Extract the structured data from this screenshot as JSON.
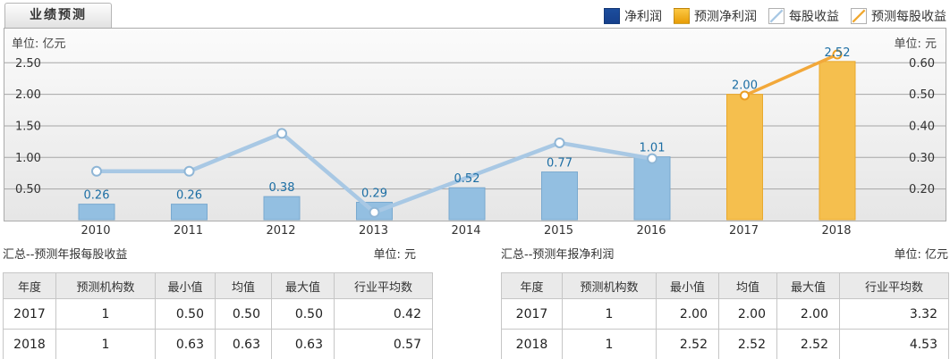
{
  "tab": {
    "label": "业绩预测"
  },
  "legend": {
    "items": [
      {
        "name": "net-profit",
        "label": "净利润",
        "swatch": "solid",
        "color": "#1c4d9d",
        "color2": "#16408c"
      },
      {
        "name": "forecast-net-profit",
        "label": "预测净利润",
        "swatch": "solid",
        "color": "#fcc844",
        "color2": "#e89d06"
      },
      {
        "name": "eps",
        "label": "每股收益",
        "swatch": "diagonal",
        "color": "#a8c8e4"
      },
      {
        "name": "forecast-eps",
        "label": "预测每股收益",
        "swatch": "diagonal",
        "color": "#f0a830"
      }
    ]
  },
  "chart_data": {
    "type": "combo-bar-line",
    "categories": [
      "2010",
      "2011",
      "2012",
      "2013",
      "2014",
      "2015",
      "2016",
      "2017",
      "2018"
    ],
    "left_axis": {
      "unit": "单位: 亿元",
      "ticks": [
        "2.50",
        "2.00",
        "1.50",
        "1.00",
        "0.50"
      ],
      "range": [
        0,
        3.06
      ]
    },
    "right_axis": {
      "unit": "单位: 元",
      "ticks": [
        "0.60",
        "0.50",
        "0.40",
        "0.30",
        "0.20"
      ],
      "range": [
        0.1,
        0.71
      ]
    },
    "grid": "horizontal-only",
    "legend_position": "top-right",
    "colors": {
      "gridline": "#a6a6a6",
      "tick_text": "#333333",
      "bar_label": "#1c6ea4"
    },
    "series": [
      {
        "name": "净利润",
        "type": "bar",
        "axis": "left",
        "color": "#93bfe1",
        "border": "#79a9cf",
        "values": [
          0.26,
          0.26,
          0.38,
          0.29,
          0.52,
          0.77,
          1.01,
          null,
          null
        ],
        "labels": [
          "0.26",
          "0.26",
          "0.38",
          "0.29",
          "0.52",
          "0.77",
          "1.01",
          null,
          null
        ]
      },
      {
        "name": "预测净利润",
        "type": "bar",
        "axis": "left",
        "color": "#f5bf4e",
        "border": "#e9a92e",
        "values": [
          null,
          null,
          null,
          null,
          null,
          null,
          null,
          2.0,
          2.52
        ],
        "labels": [
          null,
          null,
          null,
          null,
          null,
          null,
          null,
          "2.00",
          "2.52"
        ]
      },
      {
        "name": "每股收益",
        "type": "line",
        "axis": "right",
        "color": "#a8c8e4",
        "marker_stroke": "#8fb6d6",
        "thickness": 4.5,
        "marker_r": 5,
        "values": [
          0.26,
          0.26,
          0.38,
          0.13,
          0.24,
          0.35,
          0.3,
          null,
          null
        ],
        "markers": [
          true,
          true,
          true,
          true,
          false,
          true,
          true,
          false,
          false
        ]
      },
      {
        "name": "预测每股收益",
        "type": "line",
        "axis": "right",
        "color": "#f2a83a",
        "marker_stroke": "#eb9e23",
        "thickness": 3.5,
        "marker_r": 4.5,
        "values": [
          null,
          null,
          null,
          null,
          null,
          null,
          null,
          0.5,
          0.63
        ],
        "markers": [
          false,
          false,
          false,
          false,
          false,
          false,
          false,
          true,
          true
        ]
      }
    ]
  },
  "tables": [
    {
      "title": "汇总--预测年报每股收益",
      "unit": "单位: 元",
      "headers": [
        "年度",
        "预测机构数",
        "最小值",
        "均值",
        "最大值",
        "行业平均数"
      ],
      "rows": [
        [
          "2017",
          "1",
          "0.50",
          "0.50",
          "0.50",
          "0.42"
        ],
        [
          "2018",
          "1",
          "0.63",
          "0.63",
          "0.63",
          "0.57"
        ]
      ]
    },
    {
      "title": "汇总--预测年报净利润",
      "unit": "单位: 亿元",
      "headers": [
        "年度",
        "预测机构数",
        "最小值",
        "均值",
        "最大值",
        "行业平均数"
      ],
      "rows": [
        [
          "2017",
          "1",
          "2.00",
          "2.00",
          "2.00",
          "3.32"
        ],
        [
          "2018",
          "1",
          "2.52",
          "2.52",
          "2.52",
          "4.53"
        ]
      ]
    }
  ]
}
